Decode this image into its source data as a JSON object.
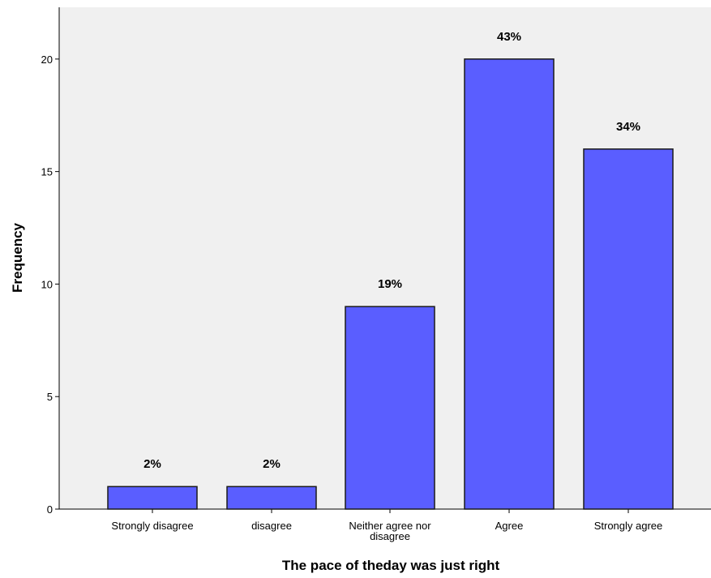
{
  "chart_data": {
    "type": "bar",
    "title": "",
    "xlabel": "The pace of theday was just right",
    "ylabel": "Frequency",
    "categories": [
      [
        "Strongly disagree"
      ],
      [
        "disagree"
      ],
      [
        "Neither agree nor",
        "disagree"
      ],
      [
        "Agree"
      ],
      [
        "Strongly agree"
      ]
    ],
    "values": [
      1,
      1,
      9,
      20,
      16
    ],
    "data_labels": [
      "2%",
      "2%",
      "19%",
      "43%",
      "34%"
    ],
    "ylim": [
      0,
      22.3
    ],
    "yticks": [
      0,
      5,
      10,
      15,
      20
    ],
    "grid": false,
    "colors": {
      "bar_fill": "#5a5eff",
      "bar_stroke": "#1a1a1a",
      "plot_bg": "#f0f0f0",
      "axis": "#000000"
    }
  }
}
